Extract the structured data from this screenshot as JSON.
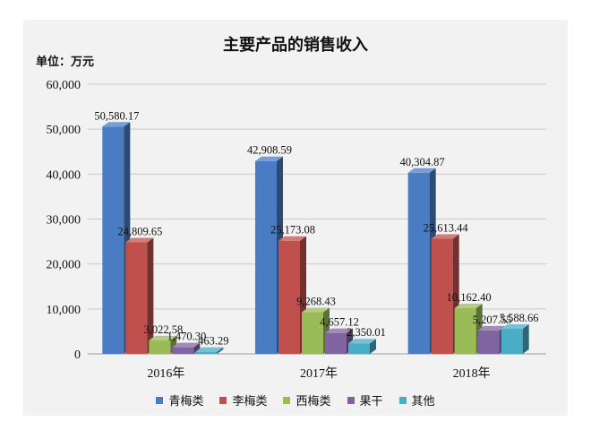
{
  "chart_data": {
    "type": "bar",
    "title": "主要产品的销售收入",
    "unit_label": "单位：万元",
    "categories": [
      "2016年",
      "2017年",
      "2018年"
    ],
    "series": [
      {
        "name": "青梅类",
        "color": "#4a7cc4",
        "values": [
          50580.17,
          42908.59,
          40304.87
        ],
        "labels": [
          "50,580.17",
          "42,908.59",
          "40,304.87"
        ]
      },
      {
        "name": "李梅类",
        "color": "#c0504d",
        "values": [
          24809.65,
          25173.08,
          25613.44
        ],
        "labels": [
          "24,809.65",
          "25,173.08",
          "25,613.44"
        ]
      },
      {
        "name": "西梅类",
        "color": "#9bbb59",
        "values": [
          3022.58,
          9268.43,
          10162.4
        ],
        "labels": [
          "3,022.58",
          "9,268.43",
          "10,162.40"
        ]
      },
      {
        "name": "果干",
        "color": "#8064a2",
        "values": [
          1470.3,
          4657.12,
          5207.55
        ],
        "labels": [
          "1,470.30",
          "4,657.12",
          "5,207.55"
        ]
      },
      {
        "name": "其他",
        "color": "#4bacc6",
        "values": [
          463.29,
          2350.01,
          5588.66
        ],
        "labels": [
          "463.29",
          "2,350.01",
          "5,588.66"
        ]
      }
    ],
    "yticks": [
      "0",
      "10,000",
      "20,000",
      "30,000",
      "40,000",
      "50,000",
      "60,000"
    ],
    "ylim": [
      0,
      60000
    ],
    "grid": true,
    "legend_position": "bottom",
    "chart_style": "3d-bar"
  }
}
